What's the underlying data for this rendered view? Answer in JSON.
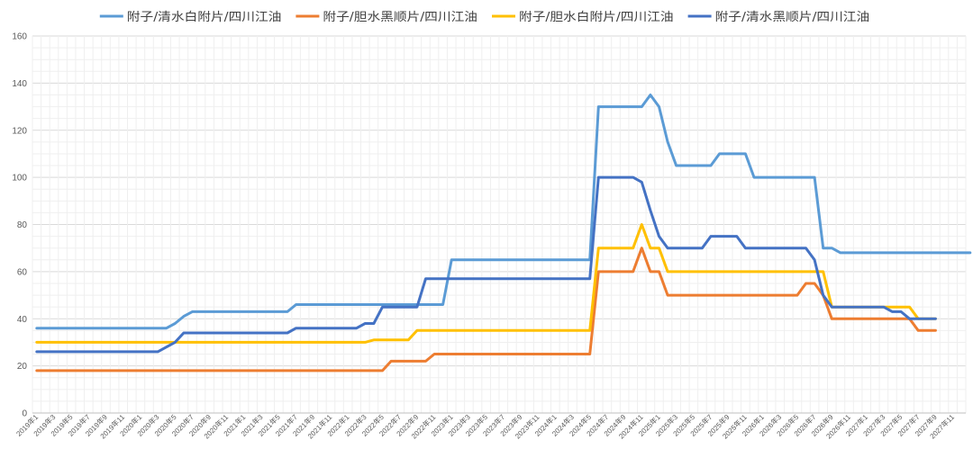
{
  "chart_data": {
    "type": "line",
    "title": "",
    "xlabel": "",
    "ylabel": "",
    "ylim": [
      0,
      160
    ],
    "yticks": [
      0,
      20,
      40,
      60,
      80,
      100,
      120,
      140,
      160
    ],
    "grid": true,
    "legend_position": "top",
    "x_tick_labels": [
      "2019年1",
      "2019年3",
      "2019年5",
      "2019年7",
      "2019年9",
      "2019年11",
      "2020年1",
      "2020年3",
      "2020年5",
      "2020年7",
      "2020年9",
      "2020年11",
      "2021年1",
      "2021年3",
      "2021年5",
      "2021年7",
      "2021年9",
      "2021年11",
      "2022年1",
      "2022年3",
      "2022年5",
      "2022年7",
      "2022年9",
      "2022年11",
      "2023年1",
      "2023年3",
      "2023年5",
      "2023年7",
      "2023年9",
      "2023年11",
      "2024年1",
      "2024年3",
      "2024年5",
      "2024年7",
      "2024年9",
      "2024年11",
      "2025年1",
      "2025年3",
      "2025年5",
      "2025年7",
      "2025年9",
      "2025年11",
      "2026年1",
      "2026年3",
      "2026年5",
      "2026年7",
      "2026年9",
      "2026年11",
      "2027年1",
      "2027年3",
      "2027年5",
      "2027年7",
      "2027年9",
      "2027年11"
    ],
    "series": [
      {
        "name": "附子/清水白附片/四川江油",
        "color": "#5B9BD5",
        "points": [
          [
            0,
            36
          ],
          [
            15,
            36
          ],
          [
            16,
            38
          ],
          [
            17,
            41
          ],
          [
            18,
            43
          ],
          [
            29,
            43
          ],
          [
            30,
            46
          ],
          [
            45,
            46
          ],
          [
            46,
            46
          ],
          [
            47,
            46
          ],
          [
            48,
            65
          ],
          [
            64,
            65
          ],
          [
            65,
            130
          ],
          [
            70,
            130
          ],
          [
            71,
            135
          ],
          [
            72,
            130
          ],
          [
            73,
            115
          ],
          [
            74,
            105
          ],
          [
            78,
            105
          ],
          [
            79,
            110
          ],
          [
            82,
            110
          ],
          [
            83,
            100
          ],
          [
            90,
            100
          ],
          [
            91,
            70
          ],
          [
            92,
            70
          ],
          [
            93,
            68
          ],
          [
            108,
            68
          ]
        ]
      },
      {
        "name": "附子/胆水黑顺片/四川江油",
        "color": "#ED7D31",
        "points": [
          [
            0,
            18
          ],
          [
            40,
            18
          ],
          [
            41,
            22
          ],
          [
            44,
            22
          ],
          [
            45,
            22
          ],
          [
            46,
            25
          ],
          [
            64,
            25
          ],
          [
            65,
            60
          ],
          [
            69,
            60
          ],
          [
            70,
            70
          ],
          [
            71,
            60
          ],
          [
            72,
            60
          ],
          [
            73,
            50
          ],
          [
            88,
            50
          ],
          [
            89,
            55
          ],
          [
            90,
            55
          ],
          [
            91,
            50
          ],
          [
            92,
            40
          ],
          [
            100,
            40
          ],
          [
            101,
            40
          ],
          [
            102,
            35
          ],
          [
            104,
            35
          ]
        ]
      },
      {
        "name": "附子/胆水白附片/四川江油",
        "color": "#FFC000",
        "points": [
          [
            0,
            30
          ],
          [
            38,
            30
          ],
          [
            39,
            31
          ],
          [
            42,
            31
          ],
          [
            43,
            31
          ],
          [
            44,
            35
          ],
          [
            64,
            35
          ],
          [
            65,
            70
          ],
          [
            69,
            70
          ],
          [
            70,
            80
          ],
          [
            71,
            70
          ],
          [
            72,
            70
          ],
          [
            73,
            60
          ],
          [
            90,
            60
          ],
          [
            91,
            60
          ],
          [
            92,
            45
          ],
          [
            99,
            45
          ],
          [
            100,
            45
          ],
          [
            101,
            45
          ],
          [
            102,
            40
          ],
          [
            104,
            40
          ]
        ]
      },
      {
        "name": "附子/清水黑顺片/四川江油",
        "color": "#4472C4",
        "points": [
          [
            0,
            26
          ],
          [
            14,
            26
          ],
          [
            15,
            28
          ],
          [
            16,
            30
          ],
          [
            17,
            34
          ],
          [
            29,
            34
          ],
          [
            30,
            36
          ],
          [
            37,
            36
          ],
          [
            38,
            38
          ],
          [
            39,
            38
          ],
          [
            40,
            45
          ],
          [
            43,
            45
          ],
          [
            44,
            45
          ],
          [
            45,
            57
          ],
          [
            64,
            57
          ],
          [
            65,
            100
          ],
          [
            69,
            100
          ],
          [
            70,
            98
          ],
          [
            71,
            86
          ],
          [
            72,
            75
          ],
          [
            73,
            70
          ],
          [
            77,
            70
          ],
          [
            78,
            75
          ],
          [
            81,
            75
          ],
          [
            82,
            70
          ],
          [
            89,
            70
          ],
          [
            90,
            65
          ],
          [
            91,
            50
          ],
          [
            92,
            45
          ],
          [
            98,
            45
          ],
          [
            99,
            43
          ],
          [
            100,
            43
          ],
          [
            101,
            40
          ],
          [
            104,
            40
          ]
        ]
      }
    ]
  }
}
